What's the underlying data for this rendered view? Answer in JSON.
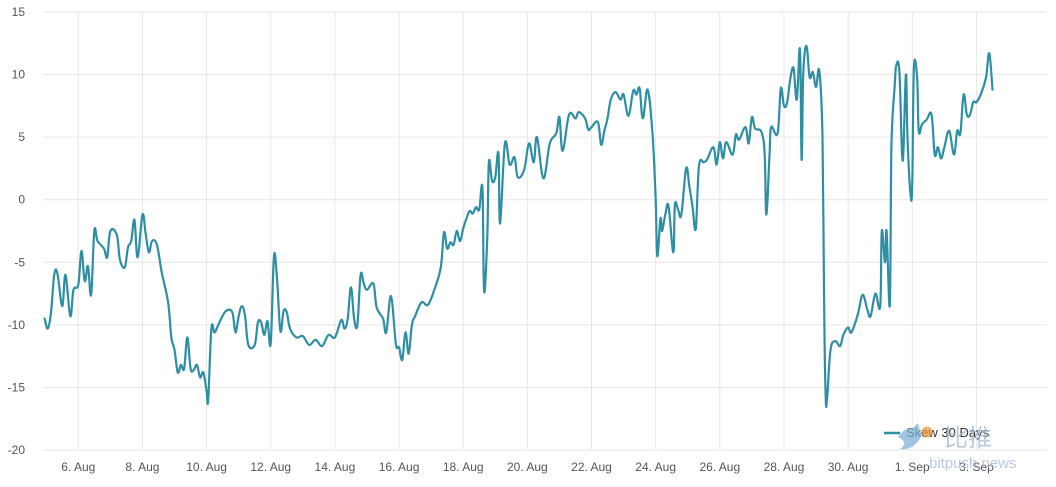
{
  "chart_data": {
    "type": "line",
    "x_ticks": [
      "6. Aug",
      "8. Aug",
      "10. Aug",
      "12. Aug",
      "14. Aug",
      "16. Aug",
      "18. Aug",
      "20. Aug",
      "22. Aug",
      "24. Aug",
      "26. Aug",
      "28. Aug",
      "30. Aug",
      "1. Sep",
      "3. Sep"
    ],
    "y_ticks": [
      "15",
      "10",
      "5",
      "0",
      "-5",
      "-10",
      "-15",
      "-20"
    ],
    "ylim": [
      -20,
      15
    ],
    "xlim": [
      4.9,
      36.2
    ],
    "grid": true,
    "legend_position": "bottom-right",
    "color": "#2e8fa3",
    "series": [
      {
        "name": "Skew 30 Days",
        "points": [
          [
            4.95,
            -9.5
          ],
          [
            5.05,
            -10.3
          ],
          [
            5.15,
            -9.0
          ],
          [
            5.25,
            -6.0
          ],
          [
            5.35,
            -5.9
          ],
          [
            5.5,
            -8.5
          ],
          [
            5.6,
            -6.0
          ],
          [
            5.75,
            -9.3
          ],
          [
            5.85,
            -7.2
          ],
          [
            6.0,
            -6.8
          ],
          [
            6.1,
            -4.1
          ],
          [
            6.2,
            -6.5
          ],
          [
            6.3,
            -5.3
          ],
          [
            6.4,
            -7.6
          ],
          [
            6.5,
            -2.5
          ],
          [
            6.6,
            -3.3
          ],
          [
            6.8,
            -3.9
          ],
          [
            6.9,
            -4.6
          ],
          [
            7.0,
            -2.5
          ],
          [
            7.2,
            -2.8
          ],
          [
            7.3,
            -4.8
          ],
          [
            7.45,
            -5.4
          ],
          [
            7.55,
            -3.8
          ],
          [
            7.65,
            -3.3
          ],
          [
            7.75,
            -1.6
          ],
          [
            7.85,
            -4.6
          ],
          [
            8.0,
            -1.2
          ],
          [
            8.1,
            -2.7
          ],
          [
            8.2,
            -4.2
          ],
          [
            8.3,
            -3.3
          ],
          [
            8.45,
            -3.6
          ],
          [
            8.6,
            -5.8
          ],
          [
            8.8,
            -8.2
          ],
          [
            8.9,
            -11.0
          ],
          [
            9.0,
            -12.0
          ],
          [
            9.1,
            -13.8
          ],
          [
            9.2,
            -13.2
          ],
          [
            9.3,
            -13.5
          ],
          [
            9.4,
            -11.0
          ],
          [
            9.5,
            -13.5
          ],
          [
            9.6,
            -13.6
          ],
          [
            9.7,
            -13.2
          ],
          [
            9.8,
            -14.2
          ],
          [
            9.9,
            -13.8
          ],
          [
            10.0,
            -15.3
          ],
          [
            10.05,
            -16.0
          ],
          [
            10.15,
            -10.3
          ],
          [
            10.25,
            -10.6
          ],
          [
            10.4,
            -9.8
          ],
          [
            10.6,
            -8.9
          ],
          [
            10.8,
            -9.0
          ],
          [
            10.9,
            -10.6
          ],
          [
            11.0,
            -9.3
          ],
          [
            11.1,
            -8.5
          ],
          [
            11.2,
            -9.3
          ],
          [
            11.3,
            -11.6
          ],
          [
            11.5,
            -11.6
          ],
          [
            11.6,
            -9.8
          ],
          [
            11.7,
            -9.8
          ],
          [
            11.8,
            -10.8
          ],
          [
            11.9,
            -9.7
          ],
          [
            12.0,
            -11.5
          ],
          [
            12.1,
            -4.5
          ],
          [
            12.2,
            -6.5
          ],
          [
            12.3,
            -10.5
          ],
          [
            12.4,
            -8.9
          ],
          [
            12.5,
            -9.0
          ],
          [
            12.6,
            -10.3
          ],
          [
            12.8,
            -11.0
          ],
          [
            13.0,
            -10.9
          ],
          [
            13.2,
            -11.6
          ],
          [
            13.4,
            -11.2
          ],
          [
            13.6,
            -11.7
          ],
          [
            13.8,
            -10.8
          ],
          [
            14.0,
            -11.0
          ],
          [
            14.2,
            -9.6
          ],
          [
            14.3,
            -10.3
          ],
          [
            14.4,
            -9.5
          ],
          [
            14.5,
            -7.0
          ],
          [
            14.6,
            -9.5
          ],
          [
            14.7,
            -10.0
          ],
          [
            14.8,
            -6.0
          ],
          [
            14.9,
            -6.7
          ],
          [
            15.0,
            -7.2
          ],
          [
            15.2,
            -6.7
          ],
          [
            15.3,
            -8.6
          ],
          [
            15.5,
            -9.5
          ],
          [
            15.6,
            -10.6
          ],
          [
            15.75,
            -7.7
          ],
          [
            15.9,
            -11.5
          ],
          [
            16.0,
            -11.8
          ],
          [
            16.1,
            -12.8
          ],
          [
            16.2,
            -10.6
          ],
          [
            16.3,
            -12.3
          ],
          [
            16.4,
            -10.0
          ],
          [
            16.5,
            -9.3
          ],
          [
            16.7,
            -8.2
          ],
          [
            16.9,
            -8.4
          ],
          [
            17.1,
            -7.2
          ],
          [
            17.3,
            -5.4
          ],
          [
            17.4,
            -2.6
          ],
          [
            17.5,
            -3.9
          ],
          [
            17.6,
            -3.4
          ],
          [
            17.7,
            -3.6
          ],
          [
            17.8,
            -2.5
          ],
          [
            17.9,
            -3.3
          ],
          [
            18.0,
            -2.3
          ],
          [
            18.1,
            -1.5
          ],
          [
            18.2,
            -0.9
          ],
          [
            18.3,
            -1.1
          ],
          [
            18.4,
            -0.6
          ],
          [
            18.5,
            -0.8
          ],
          [
            18.6,
            0.9
          ],
          [
            18.65,
            -7.3
          ],
          [
            18.75,
            -3.0
          ],
          [
            18.8,
            3.0
          ],
          [
            18.9,
            1.5
          ],
          [
            19.0,
            1.8
          ],
          [
            19.1,
            3.7
          ],
          [
            19.15,
            -1.9
          ],
          [
            19.3,
            4.5
          ],
          [
            19.45,
            2.8
          ],
          [
            19.6,
            3.4
          ],
          [
            19.7,
            1.8
          ],
          [
            19.9,
            2.4
          ],
          [
            20.05,
            4.5
          ],
          [
            20.2,
            3.0
          ],
          [
            20.3,
            5.0
          ],
          [
            20.5,
            1.7
          ],
          [
            20.7,
            4.5
          ],
          [
            20.9,
            5.3
          ],
          [
            21.0,
            6.6
          ],
          [
            21.1,
            3.9
          ],
          [
            21.3,
            6.8
          ],
          [
            21.5,
            6.5
          ],
          [
            21.6,
            7.0
          ],
          [
            21.8,
            6.5
          ],
          [
            21.9,
            5.6
          ],
          [
            22.0,
            5.8
          ],
          [
            22.2,
            6.2
          ],
          [
            22.3,
            4.4
          ],
          [
            22.4,
            5.5
          ],
          [
            22.5,
            6.5
          ],
          [
            22.6,
            8.0
          ],
          [
            22.75,
            8.6
          ],
          [
            22.9,
            8.0
          ],
          [
            23.0,
            8.4
          ],
          [
            23.15,
            6.7
          ],
          [
            23.3,
            8.7
          ],
          [
            23.4,
            8.4
          ],
          [
            23.5,
            8.9
          ],
          [
            23.6,
            6.5
          ],
          [
            23.75,
            8.8
          ],
          [
            23.9,
            5.3
          ],
          [
            24.0,
            0.0
          ],
          [
            24.05,
            -4.5
          ],
          [
            24.15,
            -1.5
          ],
          [
            24.2,
            -2.5
          ],
          [
            24.3,
            -1.2
          ],
          [
            24.4,
            -0.5
          ],
          [
            24.55,
            -4.2
          ],
          [
            24.6,
            -0.4
          ],
          [
            24.7,
            -0.8
          ],
          [
            24.8,
            -1.2
          ],
          [
            24.95,
            2.5
          ],
          [
            25.05,
            1.1
          ],
          [
            25.15,
            -0.6
          ],
          [
            25.25,
            -2.3
          ],
          [
            25.35,
            2.7
          ],
          [
            25.5,
            3.0
          ],
          [
            25.6,
            3.2
          ],
          [
            25.8,
            4.2
          ],
          [
            25.9,
            2.8
          ],
          [
            26.0,
            4.6
          ],
          [
            26.1,
            3.3
          ],
          [
            26.2,
            4.6
          ],
          [
            26.4,
            3.6
          ],
          [
            26.5,
            5.2
          ],
          [
            26.6,
            4.8
          ],
          [
            26.8,
            5.8
          ],
          [
            26.9,
            4.5
          ],
          [
            27.0,
            6.6
          ],
          [
            27.1,
            5.7
          ],
          [
            27.3,
            5.4
          ],
          [
            27.4,
            3.6
          ],
          [
            27.45,
            -1.2
          ],
          [
            27.55,
            3.6
          ],
          [
            27.6,
            5.8
          ],
          [
            27.8,
            5.3
          ],
          [
            27.9,
            8.9
          ],
          [
            28.0,
            7.5
          ],
          [
            28.1,
            7.8
          ],
          [
            28.2,
            9.7
          ],
          [
            28.3,
            10.5
          ],
          [
            28.4,
            8.0
          ],
          [
            28.5,
            12.0
          ],
          [
            28.55,
            3.2
          ],
          [
            28.6,
            10.0
          ],
          [
            28.7,
            12.3
          ],
          [
            28.8,
            9.8
          ],
          [
            28.9,
            10.2
          ],
          [
            29.0,
            9.0
          ],
          [
            29.1,
            10.3
          ],
          [
            29.2,
            5.0
          ],
          [
            29.25,
            -8.0
          ],
          [
            29.3,
            -15.8
          ],
          [
            29.35,
            -15.7
          ],
          [
            29.45,
            -12.0
          ],
          [
            29.6,
            -11.3
          ],
          [
            29.75,
            -11.7
          ],
          [
            29.85,
            -10.8
          ],
          [
            30.0,
            -10.2
          ],
          [
            30.1,
            -10.6
          ],
          [
            30.3,
            -9.2
          ],
          [
            30.45,
            -7.6
          ],
          [
            30.6,
            -8.8
          ],
          [
            30.7,
            -9.3
          ],
          [
            30.85,
            -7.5
          ],
          [
            31.0,
            -8.5
          ],
          [
            31.05,
            -2.5
          ],
          [
            31.15,
            -5.0
          ],
          [
            31.2,
            -2.5
          ],
          [
            31.3,
            -8.4
          ],
          [
            31.35,
            4.2
          ],
          [
            31.45,
            9.0
          ],
          [
            31.5,
            10.7
          ],
          [
            31.6,
            10.2
          ],
          [
            31.7,
            3.1
          ],
          [
            31.8,
            10.0
          ],
          [
            31.85,
            5.0
          ],
          [
            31.95,
            0.3
          ],
          [
            32.0,
            1.5
          ],
          [
            32.05,
            10.5
          ],
          [
            32.15,
            9.8
          ],
          [
            32.2,
            5.5
          ],
          [
            32.3,
            6.0
          ],
          [
            32.45,
            6.4
          ],
          [
            32.6,
            6.8
          ],
          [
            32.7,
            3.6
          ],
          [
            32.8,
            4.2
          ],
          [
            32.9,
            3.3
          ],
          [
            33.0,
            4.2
          ],
          [
            33.15,
            5.5
          ],
          [
            33.3,
            3.6
          ],
          [
            33.4,
            5.5
          ],
          [
            33.5,
            5.3
          ],
          [
            33.6,
            8.4
          ],
          [
            33.7,
            6.8
          ],
          [
            33.8,
            6.8
          ],
          [
            33.9,
            7.8
          ],
          [
            34.0,
            7.8
          ],
          [
            34.15,
            8.5
          ],
          [
            34.3,
            9.8
          ],
          [
            34.4,
            11.7
          ],
          [
            34.5,
            8.8
          ]
        ]
      }
    ]
  },
  "legend": {
    "label": "Skew 30 Days"
  },
  "watermark": {
    "chinese": "比推",
    "site": "bitpush.news"
  }
}
